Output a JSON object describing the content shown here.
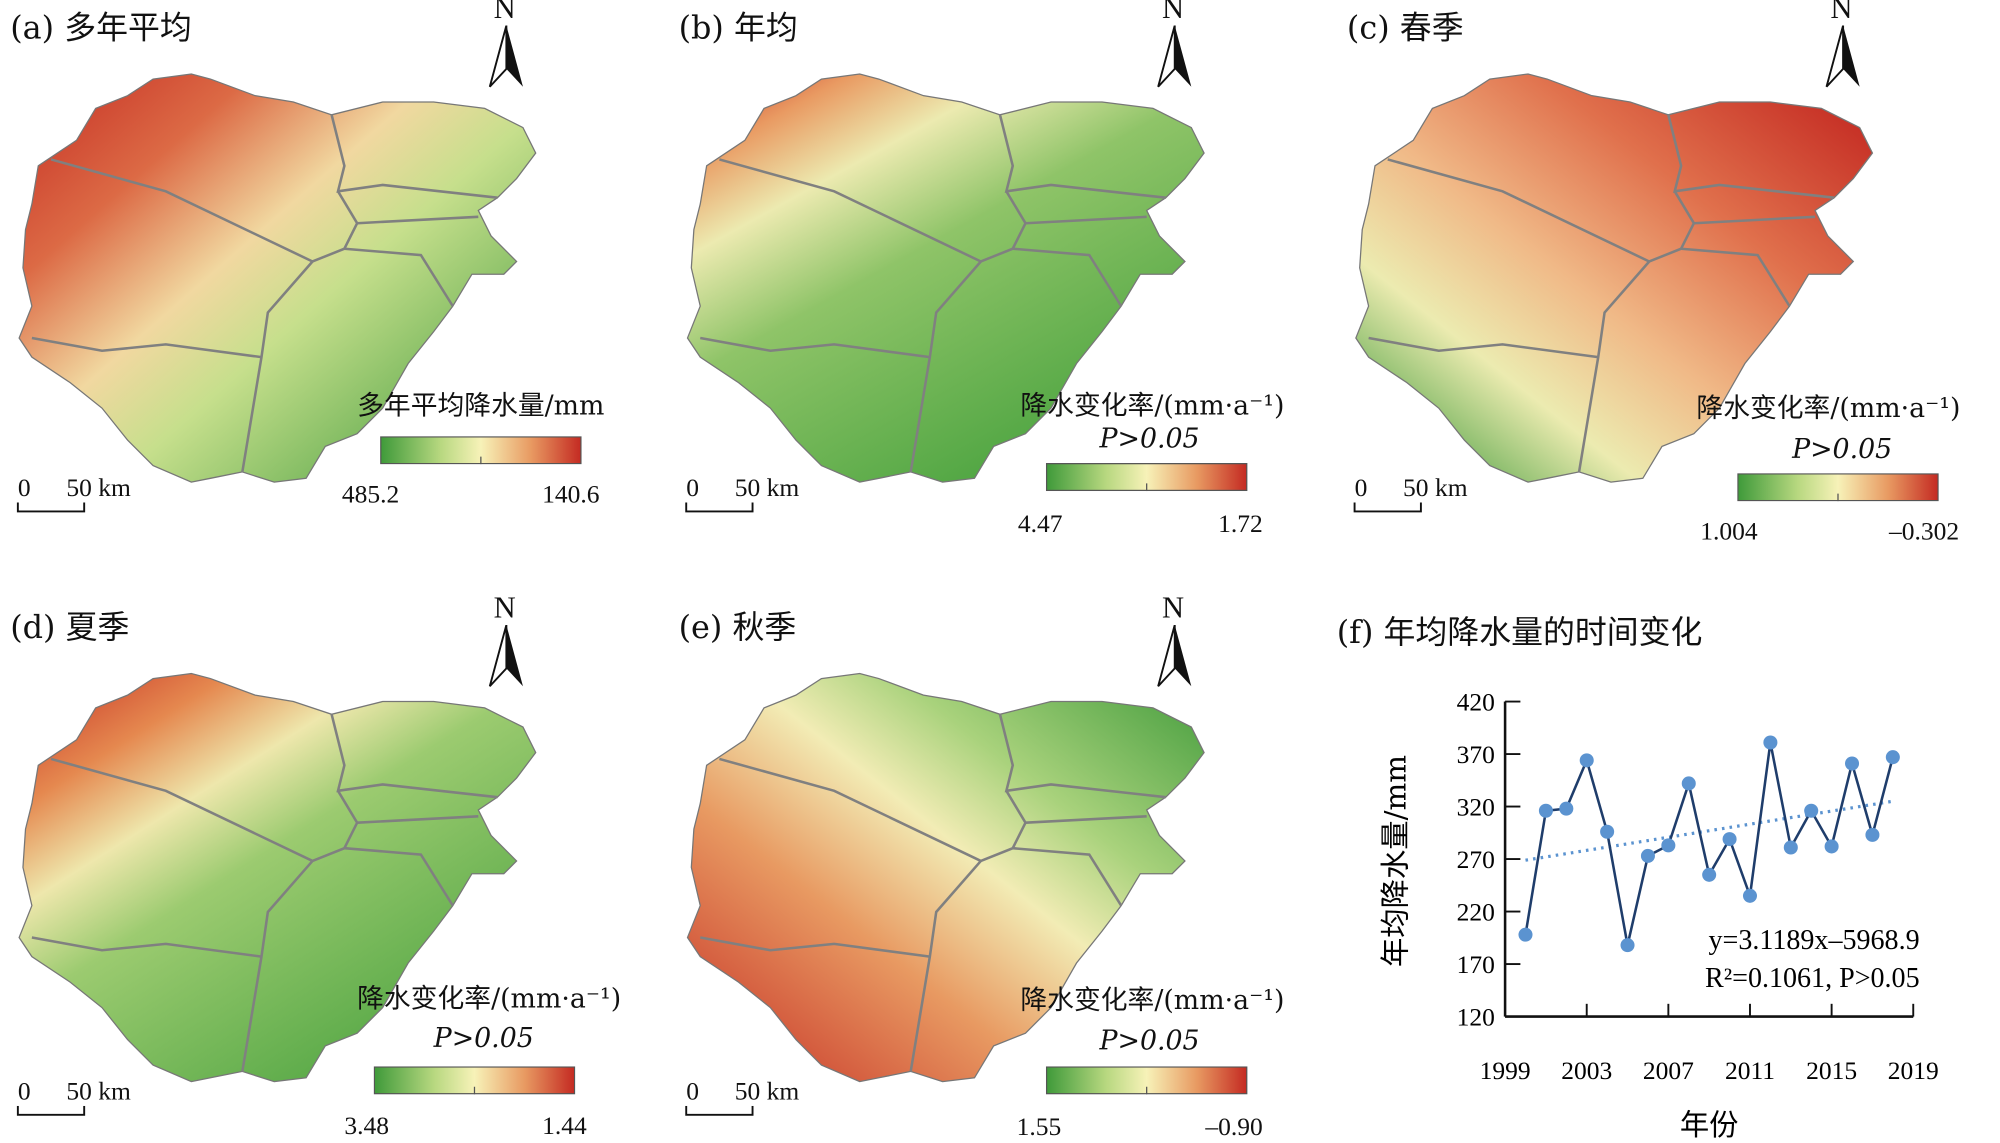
{
  "panels": [
    {
      "title": "(a) 多年平均",
      "legend_title": "多年平均降水量/mm",
      "significance": "",
      "min_label": "485.2",
      "max_label": "140.6",
      "scale_zero": "0",
      "scale_label": "50 km",
      "north": "N",
      "colors": [
        "#3f9a3a",
        "#b8d880",
        "#f7f2b8",
        "#e89a62",
        "#c42a22"
      ]
    },
    {
      "title": "(b) 年均",
      "legend_title": "降水变化率/(mm·a⁻¹)",
      "significance": "P>0.05",
      "min_label": "4.47",
      "max_label": "1.72",
      "scale_zero": "0",
      "scale_label": "50 km",
      "north": "N",
      "colors": [
        "#3f9a3a",
        "#b8d880",
        "#f7f2b8",
        "#e89a62",
        "#c42a22"
      ]
    },
    {
      "title": "(c) 春季",
      "legend_title": "降水变化率/(mm·a⁻¹)",
      "significance": "P>0.05",
      "min_label": "1.004",
      "max_label": "–0.302",
      "scale_zero": "0",
      "scale_label": "50 km",
      "north": "N",
      "colors": [
        "#3f9a3a",
        "#b8d880",
        "#f7f2b8",
        "#e89a62",
        "#c42a22"
      ]
    },
    {
      "title": "(d) 夏季",
      "legend_title": "降水变化率/(mm·a⁻¹)",
      "significance": "P>0.05",
      "min_label": "3.48",
      "max_label": "1.44",
      "scale_zero": "0",
      "scale_label": "50 km",
      "north": "N",
      "colors": [
        "#3f9a3a",
        "#b8d880",
        "#f7f2b8",
        "#e89a62",
        "#c42a22"
      ]
    },
    {
      "title": "(e) 秋季",
      "legend_title": "降水变化率/(mm·a⁻¹)",
      "significance": "P>0.05",
      "min_label": "1.55",
      "max_label": "–0.90",
      "scale_zero": "0",
      "scale_label": "50 km",
      "north": "N",
      "colors": [
        "#3f9a3a",
        "#b8d880",
        "#f7f2b8",
        "#e89a62",
        "#c42a22"
      ]
    }
  ],
  "chart_data": {
    "type": "line",
    "title": "(f) 年均降水量的时间变化",
    "xlabel": "年份",
    "ylabel": "年均降水量/mm",
    "x": [
      2000,
      2001,
      2002,
      2003,
      2004,
      2005,
      2006,
      2007,
      2008,
      2009,
      2010,
      2011,
      2012,
      2013,
      2014,
      2015,
      2016,
      2017,
      2018
    ],
    "series": [
      {
        "name": "年均降水量",
        "values": [
          198,
          316,
          318,
          364,
          296,
          188,
          273,
          283,
          342,
          255,
          289,
          235,
          381,
          281,
          316,
          282,
          361,
          293,
          367
        ]
      }
    ],
    "trendline": {
      "slope": 3.1189,
      "intercept": -5968.9
    },
    "equation": "y=3.1189x–5968.9",
    "stats": "R²=0.1061, P>0.05",
    "xlim": [
      1999,
      2019
    ],
    "ylim": [
      120,
      420
    ],
    "xticks": [
      "1999",
      "2003",
      "2007",
      "2011",
      "2015",
      "2019"
    ],
    "yticks": [
      "420",
      "370",
      "320",
      "270",
      "220",
      "170",
      "120"
    ],
    "line_color": "#1f3d6b",
    "marker_color": "#5b93d0",
    "grid": false
  }
}
